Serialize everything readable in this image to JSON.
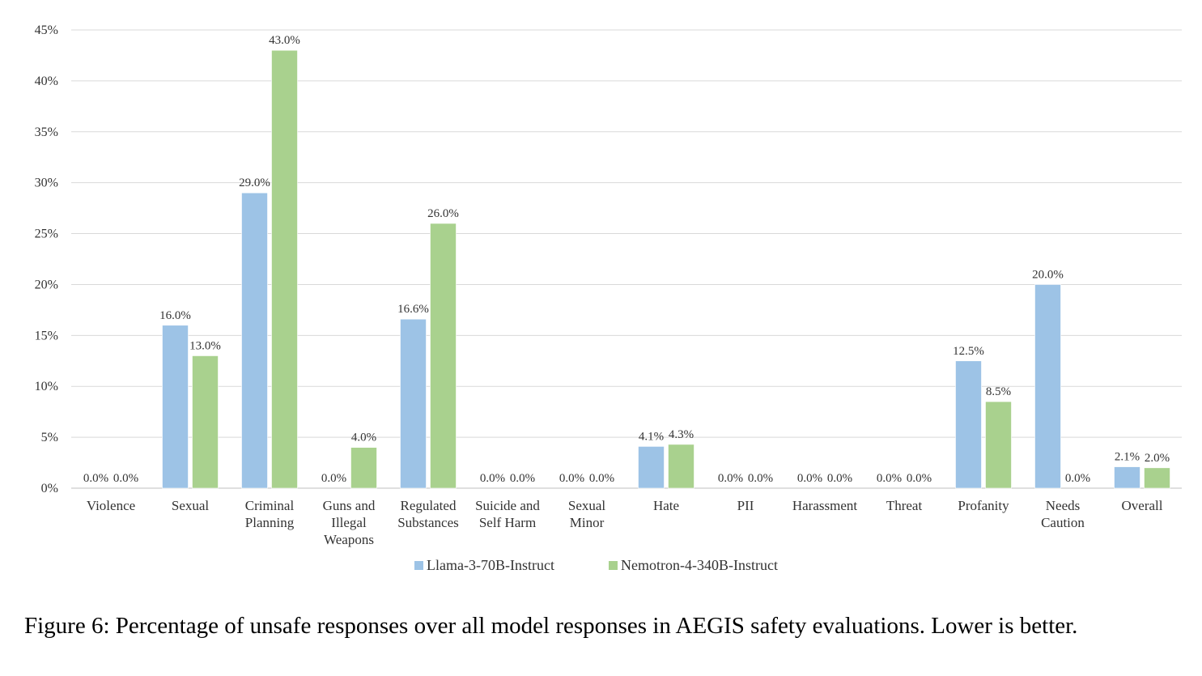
{
  "chart_data": {
    "type": "bar",
    "title": "",
    "xlabel": "",
    "ylabel": "",
    "ylim": [
      0,
      45
    ],
    "yticks": [
      0,
      5,
      10,
      15,
      20,
      25,
      30,
      35,
      40,
      45
    ],
    "ytick_labels": [
      "0%",
      "5%",
      "10%",
      "15%",
      "20%",
      "25%",
      "30%",
      "35%",
      "40%",
      "45%"
    ],
    "grid": true,
    "legend_position": "bottom-center",
    "categories": [
      [
        "Violence"
      ],
      [
        "Sexual"
      ],
      [
        "Criminal",
        "Planning"
      ],
      [
        "Guns and",
        "Illegal",
        "Weapons"
      ],
      [
        "Regulated",
        "Substances"
      ],
      [
        "Suicide and",
        "Self Harm"
      ],
      [
        "Sexual",
        "Minor"
      ],
      [
        "Hate"
      ],
      [
        "PII"
      ],
      [
        "Harassment"
      ],
      [
        "Threat"
      ],
      [
        "Profanity"
      ],
      [
        "Needs",
        "Caution"
      ],
      [
        "Overall"
      ]
    ],
    "series": [
      {
        "name": "Llama-3-70B-Instruct",
        "color": "#9dc3e6",
        "values": [
          0.0,
          16.0,
          29.0,
          0.0,
          16.6,
          0.0,
          0.0,
          4.1,
          0.0,
          0.0,
          0.0,
          12.5,
          20.0,
          2.1
        ],
        "labels": [
          "0.0%",
          "16.0%",
          "29.0%",
          "0.0%",
          "16.6%",
          "0.0%",
          "0.0%",
          "4.1%",
          "0.0%",
          "0.0%",
          "0.0%",
          "12.5%",
          "20.0%",
          "2.1%"
        ]
      },
      {
        "name": "Nemotron-4-340B-Instruct",
        "color": "#a9d18e",
        "values": [
          0.0,
          13.0,
          43.0,
          4.0,
          26.0,
          0.0,
          0.0,
          4.3,
          0.0,
          0.0,
          0.0,
          8.5,
          0.0,
          2.0
        ],
        "labels": [
          "0.0%",
          "13.0%",
          "43.0%",
          "4.0%",
          "26.0%",
          "0.0%",
          "0.0%",
          "4.3%",
          "0.0%",
          "0.0%",
          "0.0%",
          "8.5%",
          "0.0%",
          "2.0%"
        ]
      }
    ]
  },
  "caption": "Figure 6: Percentage of unsafe responses over all model responses in AEGIS safety evaluations. Lower is better."
}
